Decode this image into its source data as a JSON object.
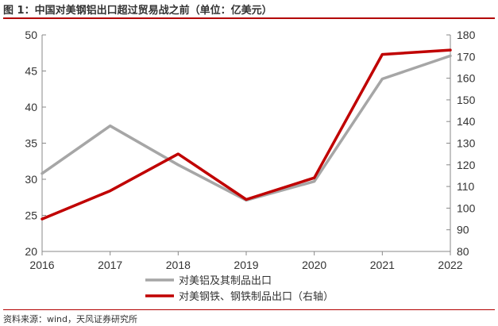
{
  "title": "图 1：中国对美钢铝出口超过贸易战之前（单位：亿美元）",
  "source": "资料来源：wind，天风证券研究所",
  "colors": {
    "aluminum": "#a6a6a6",
    "steel": "#c00000",
    "axis": "#888888",
    "rule": "#b20000"
  },
  "chart_data": {
    "type": "line",
    "x": [
      "2016",
      "2017",
      "2018",
      "2019",
      "2020",
      "2021",
      "2022"
    ],
    "series": [
      {
        "name": "对美铝及其制品出口",
        "axis": "left",
        "values": [
          30.8,
          37.4,
          32.0,
          27.1,
          29.7,
          43.9,
          47.1
        ]
      },
      {
        "name": "对美钢铁、钢铁制品出口（右轴）",
        "axis": "right",
        "values": [
          95,
          108,
          125,
          104,
          114,
          171,
          173
        ]
      }
    ],
    "y_left": {
      "ylim": [
        20,
        50
      ],
      "ticks": [
        "20",
        "25",
        "30",
        "35",
        "40",
        "45",
        "50"
      ]
    },
    "y_right": {
      "ylim": [
        80,
        180
      ],
      "ticks": [
        "80",
        "90",
        "100",
        "110",
        "120",
        "130",
        "140",
        "150",
        "160",
        "170",
        "180"
      ]
    },
    "legend": {
      "placement": "bottom-center"
    },
    "grid": false
  }
}
